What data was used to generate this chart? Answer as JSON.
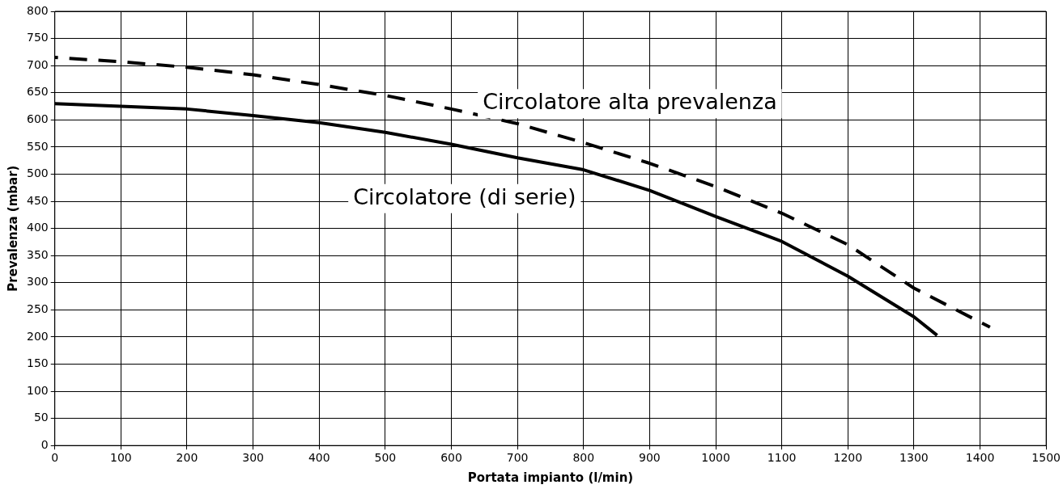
{
  "chart_data": {
    "type": "line",
    "xlabel": "Portata impianto (l/min)",
    "ylabel": "Prevalenza (mbar)",
    "xlim": [
      0,
      1500
    ],
    "xticks": [
      0,
      100,
      200,
      300,
      400,
      500,
      600,
      700,
      800,
      900,
      1000,
      1100,
      1200,
      1300,
      1400,
      1500
    ],
    "ylim": [
      0,
      800
    ],
    "yticks": [
      0,
      50,
      100,
      150,
      200,
      250,
      300,
      350,
      400,
      450,
      500,
      550,
      600,
      650,
      700,
      750,
      800
    ],
    "grid": true,
    "legend": false,
    "marker": "none",
    "series": [
      {
        "name": "Circolatore (di serie)",
        "color": "#000000",
        "line_style": "solid",
        "x": [
          0,
          200,
          300,
          400,
          500,
          600,
          700,
          800,
          900,
          1000,
          1100,
          1200,
          1300,
          1335
        ],
        "values": [
          630,
          620,
          608,
          595,
          577,
          555,
          530,
          508,
          470,
          422,
          376,
          312,
          237,
          203
        ]
      },
      {
        "name": "Circolatore alta prevalenza",
        "color": "#000000",
        "line_style": "dashed",
        "x": [
          0,
          100,
          200,
          300,
          400,
          500,
          600,
          700,
          800,
          900,
          1000,
          1100,
          1200,
          1300,
          1415
        ],
        "values": [
          715,
          707,
          697,
          683,
          665,
          645,
          620,
          593,
          558,
          520,
          477,
          428,
          370,
          290,
          218
        ]
      }
    ]
  }
}
